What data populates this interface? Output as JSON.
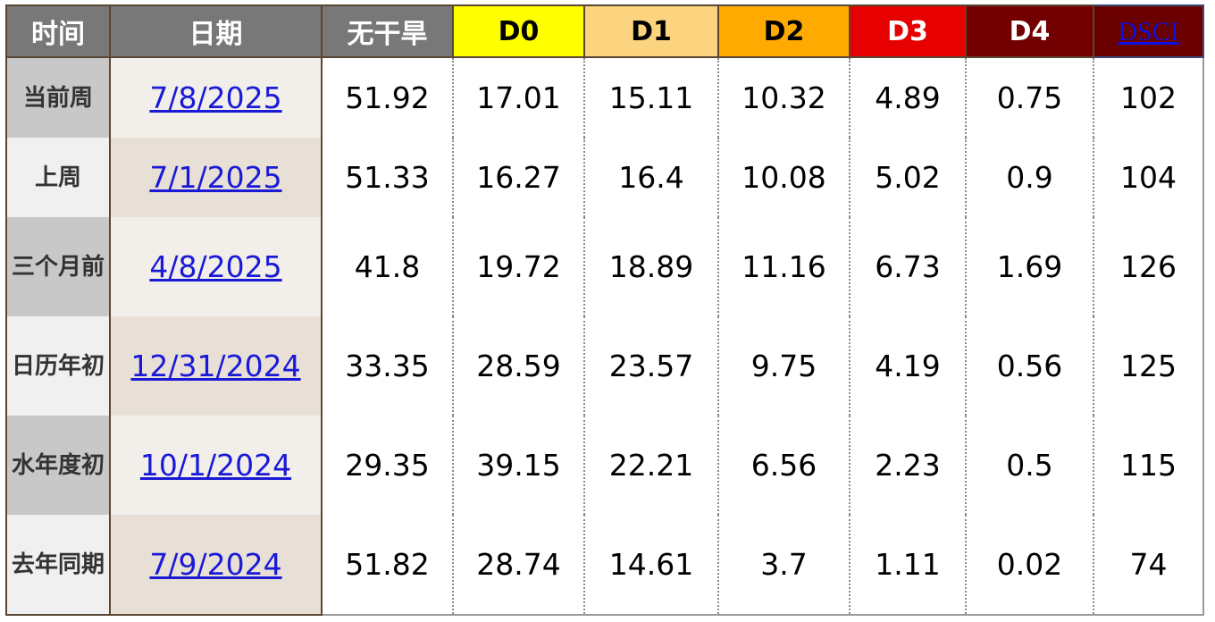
{
  "headers": {
    "time": "时间",
    "date": "日期",
    "none": "无干旱",
    "d0": "D0",
    "d1": "D1",
    "d2": "D2",
    "d3": "D3",
    "d4": "D4",
    "dsci": "DSCI"
  },
  "colors": {
    "d0": "#ffff00",
    "d1": "#fcd37f",
    "d2": "#ffaa00",
    "d3": "#e60000",
    "d4": "#730000",
    "header_gray": "#787878"
  },
  "rows": [
    {
      "time": "当前周",
      "date": "7/8/2025",
      "none": "51.92",
      "d0": "17.01",
      "d1": "15.11",
      "d2": "10.32",
      "d3": "4.89",
      "d4": "0.75",
      "dsci": "102"
    },
    {
      "time": "上周",
      "date": "7/1/2025",
      "none": "51.33",
      "d0": "16.27",
      "d1": "16.4",
      "d2": "10.08",
      "d3": "5.02",
      "d4": "0.9",
      "dsci": "104"
    },
    {
      "time": "三个月前",
      "date": "4/8/2025",
      "none": "41.8",
      "d0": "19.72",
      "d1": "18.89",
      "d2": "11.16",
      "d3": "6.73",
      "d4": "1.69",
      "dsci": "126"
    },
    {
      "time": "日历年初",
      "date": "12/31/2024",
      "none": "33.35",
      "d0": "28.59",
      "d1": "23.57",
      "d2": "9.75",
      "d3": "4.19",
      "d4": "0.56",
      "dsci": "125"
    },
    {
      "time": "水年度初",
      "date": "10/1/2024",
      "none": "29.35",
      "d0": "39.15",
      "d1": "22.21",
      "d2": "6.56",
      "d3": "2.23",
      "d4": "0.5",
      "dsci": "115"
    },
    {
      "time": "去年同期",
      "date": "7/9/2024",
      "none": "51.82",
      "d0": "28.74",
      "d1": "14.61",
      "d2": "3.7",
      "d3": "1.11",
      "d4": "0.02",
      "dsci": "74"
    }
  ]
}
